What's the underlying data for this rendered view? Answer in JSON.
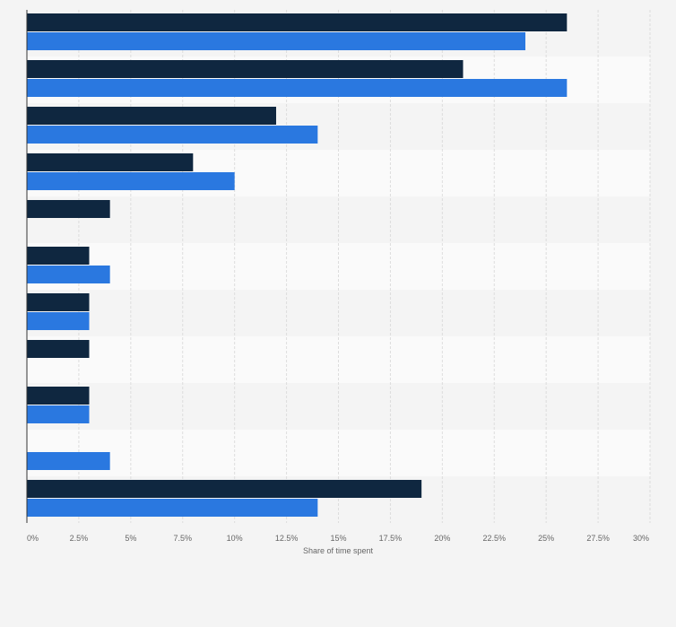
{
  "chart_data": {
    "type": "bar",
    "orientation": "horizontal",
    "title": "",
    "xlabel": "Share of time spent",
    "ylabel": "",
    "xlim": [
      0,
      30
    ],
    "x_ticks": [
      "0%",
      "2.5%",
      "5%",
      "7.5%",
      "10%",
      "12.5%",
      "15%",
      "17.5%",
      "20%",
      "22.5%",
      "25%",
      "27.5%",
      "30%"
    ],
    "grid": true,
    "legend": "none",
    "categories": [
      "",
      "",
      "",
      "",
      "",
      "",
      "",
      "",
      "",
      "",
      ""
    ],
    "series": [
      {
        "name": "",
        "color": "#0f2740",
        "values": [
          26,
          21,
          12,
          8,
          4,
          3,
          3,
          3,
          3,
          null,
          19
        ]
      },
      {
        "name": "",
        "color": "#2a78e0",
        "values": [
          24,
          26,
          14,
          10,
          null,
          4,
          3,
          null,
          3,
          4,
          14
        ]
      }
    ]
  },
  "colors": {
    "background": "#f4f4f4",
    "band_light": "#fafafa",
    "band_dark": "#f4f4f4",
    "grid": "#dddddd",
    "axis": "#333333"
  }
}
